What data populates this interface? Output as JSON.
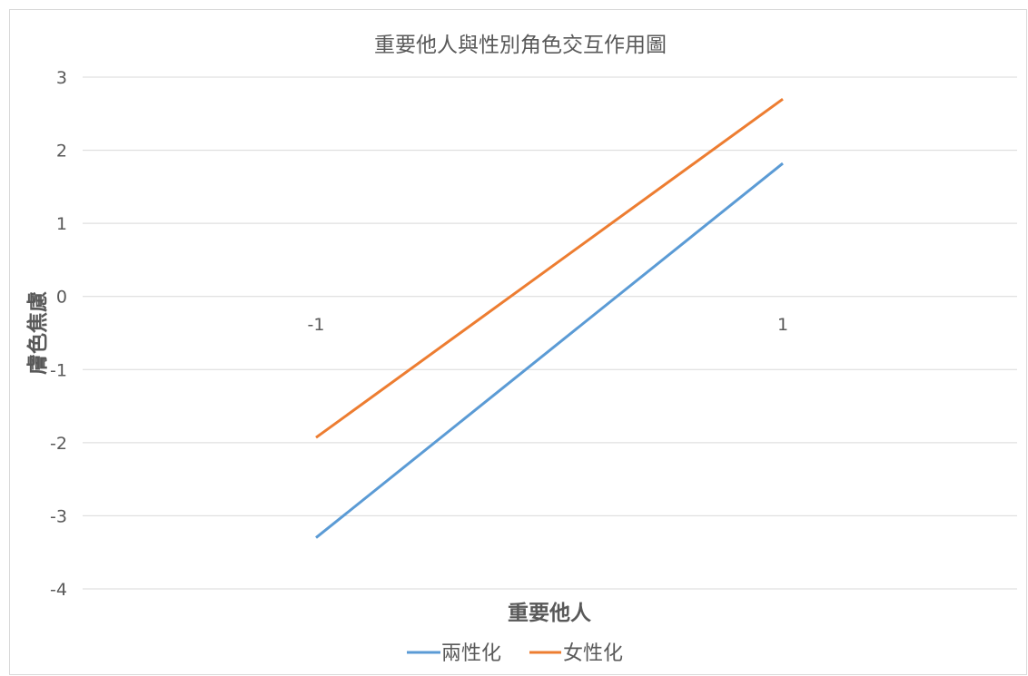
{
  "chart_data": {
    "type": "line",
    "title": "重要他人與性別角色交互作用圖",
    "xlabel": "重要他人",
    "ylabel": "膚色焦慮",
    "categories": [
      "-1",
      "1"
    ],
    "yticks": [
      "3",
      "2",
      "1",
      "0",
      "-1",
      "-2",
      "-3",
      "-4"
    ],
    "ylim": [
      -4,
      3
    ],
    "grid": true,
    "legend_position": "bottom",
    "series": [
      {
        "name": "兩性化",
        "values": [
          -3.3,
          1.82
        ],
        "color": "#5b9bd5"
      },
      {
        "name": "女性化",
        "values": [
          -1.93,
          2.7
        ],
        "color": "#ed7d31"
      }
    ]
  }
}
